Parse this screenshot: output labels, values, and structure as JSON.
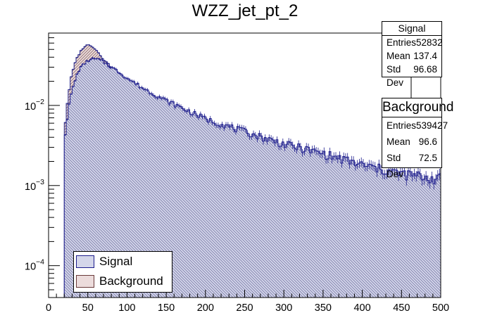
{
  "chart_data": {
    "type": "histogram",
    "title": "WZZ_jet_pt_2",
    "xlim": [
      0,
      500
    ],
    "ylim": [
      4e-05,
      0.08
    ],
    "yscale": "log",
    "x_ticks": [
      0,
      50,
      100,
      150,
      200,
      250,
      300,
      350,
      400,
      450,
      500
    ],
    "y_tick_labels": [
      {
        "value": 0.0001,
        "base": "10",
        "exp": "−4"
      },
      {
        "value": 0.001,
        "base": "10",
        "exp": "−3"
      },
      {
        "value": 0.01,
        "base": "10",
        "exp": "−2"
      }
    ],
    "bin_width": 2.5,
    "series": [
      {
        "name": "Signal",
        "color": "#1c1c8c",
        "fill": "#d4d6ea",
        "knots": [
          [
            20,
            0.0035
          ],
          [
            22,
            0.005
          ],
          [
            25,
            0.0085
          ],
          [
            28,
            0.013
          ],
          [
            32,
            0.018
          ],
          [
            36,
            0.024
          ],
          [
            40,
            0.029
          ],
          [
            45,
            0.033
          ],
          [
            50,
            0.036
          ],
          [
            55,
            0.038
          ],
          [
            60,
            0.038
          ],
          [
            65,
            0.037
          ],
          [
            70,
            0.035
          ],
          [
            80,
            0.03
          ],
          [
            90,
            0.026
          ],
          [
            100,
            0.022
          ],
          [
            120,
            0.0165
          ],
          [
            150,
            0.0115
          ],
          [
            200,
            0.0068
          ],
          [
            250,
            0.0047
          ],
          [
            300,
            0.0033
          ],
          [
            350,
            0.0025
          ],
          [
            400,
            0.0018
          ],
          [
            450,
            0.0014
          ],
          [
            500,
            0.0012
          ]
        ],
        "legend_label": "Signal",
        "stats": {
          "title": "Signal",
          "entries": "52832",
          "mean": "137.4",
          "std_dev": "96.68"
        }
      },
      {
        "name": "Background",
        "color": "#222288",
        "fill": "#ecdcdc",
        "knots": [
          [
            20,
            0.004
          ],
          [
            22,
            0.008
          ],
          [
            25,
            0.013
          ],
          [
            28,
            0.021
          ],
          [
            32,
            0.03
          ],
          [
            36,
            0.039
          ],
          [
            40,
            0.046
          ],
          [
            45,
            0.054
          ],
          [
            50,
            0.057
          ],
          [
            55,
            0.056
          ],
          [
            60,
            0.05
          ],
          [
            65,
            0.044
          ],
          [
            70,
            0.038
          ],
          [
            80,
            0.03
          ],
          [
            90,
            0.024
          ],
          [
            100,
            0.02
          ],
          [
            120,
            0.0135
          ],
          [
            150,
            0.0082
          ],
          [
            200,
            0.0037
          ],
          [
            250,
            0.0021
          ],
          [
            300,
            0.0013
          ],
          [
            350,
            0.0009
          ],
          [
            400,
            0.00062
          ],
          [
            450,
            0.00045
          ],
          [
            500,
            0.00032
          ]
        ],
        "legend_label": "Background",
        "stats": {
          "title": "Background",
          "entries": "539427",
          "mean": "96.6",
          "std_dev": "72.5"
        }
      }
    ],
    "legend": {
      "placement": "bottom-left"
    }
  },
  "labels": {
    "entries": "Entries",
    "mean": "Mean",
    "std_dev": "Std Dev"
  }
}
